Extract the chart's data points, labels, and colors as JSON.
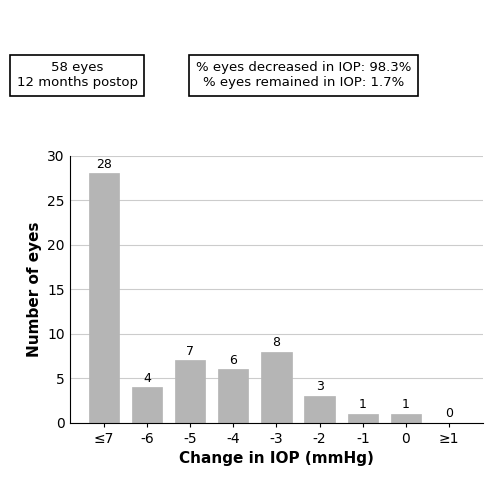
{
  "categories": [
    "≤7",
    "-6",
    "-5",
    "-4",
    "-3",
    "-2",
    "-1",
    "0",
    "≥1"
  ],
  "values": [
    28,
    4,
    7,
    6,
    8,
    3,
    1,
    1,
    0
  ],
  "bar_color": "#b5b5b5",
  "bar_edge_color": "#b5b5b5",
  "ylabel": "Number of eyes",
  "xlabel": "Change in IOP (mmHg)",
  "ylim": [
    0,
    30
  ],
  "yticks": [
    0,
    5,
    10,
    15,
    20,
    25,
    30
  ],
  "box1_lines": [
    "58 eyes",
    "12 months postop"
  ],
  "box2_lines": [
    "% eyes decreased in IOP: 98.3%",
    "% eyes remained in IOP: 1.7%"
  ],
  "xlabel_fontsize": 11,
  "ylabel_fontsize": 11,
  "tick_fontsize": 10,
  "annotation_fontsize": 9,
  "background_color": "#ffffff"
}
